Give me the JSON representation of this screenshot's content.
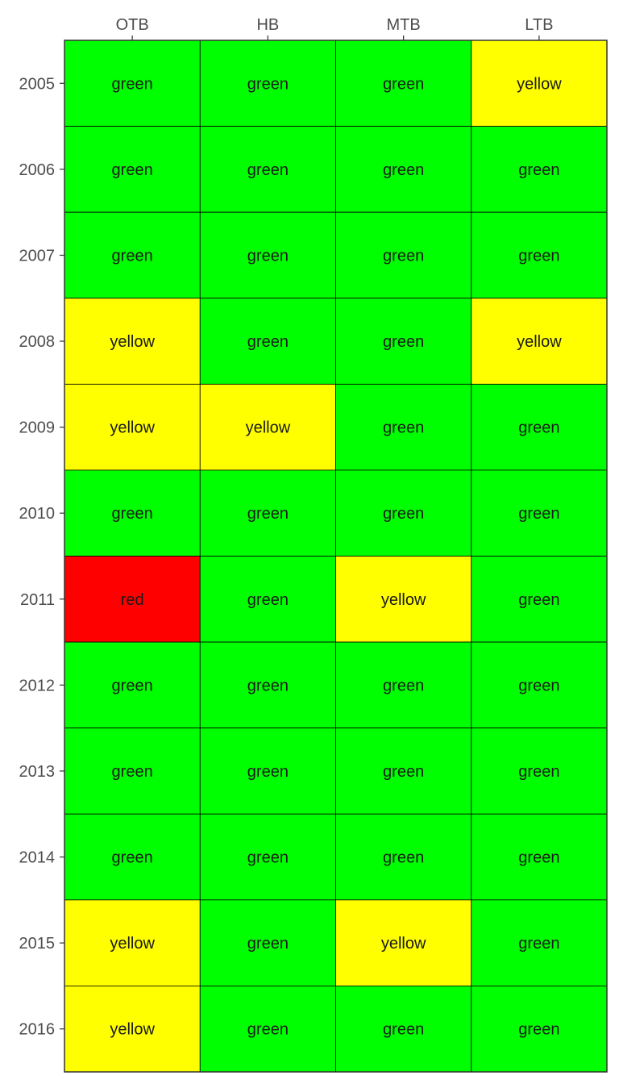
{
  "chart_data": {
    "type": "heatmap",
    "title": "",
    "xlabel": "",
    "ylabel": "",
    "columns": [
      "OTB",
      "HB",
      "MTB",
      "LTB"
    ],
    "rows": [
      "2005",
      "2006",
      "2007",
      "2008",
      "2009",
      "2010",
      "2011",
      "2012",
      "2013",
      "2014",
      "2015",
      "2016"
    ],
    "values": [
      [
        "green",
        "green",
        "green",
        "yellow"
      ],
      [
        "green",
        "green",
        "green",
        "green"
      ],
      [
        "green",
        "green",
        "green",
        "green"
      ],
      [
        "yellow",
        "green",
        "green",
        "yellow"
      ],
      [
        "yellow",
        "yellow",
        "green",
        "green"
      ],
      [
        "green",
        "green",
        "green",
        "green"
      ],
      [
        "red",
        "green",
        "yellow",
        "green"
      ],
      [
        "green",
        "green",
        "green",
        "green"
      ],
      [
        "green",
        "green",
        "green",
        "green"
      ],
      [
        "green",
        "green",
        "green",
        "green"
      ],
      [
        "yellow",
        "green",
        "yellow",
        "green"
      ],
      [
        "yellow",
        "green",
        "green",
        "green"
      ]
    ],
    "colors": {
      "green": "#00ff00",
      "yellow": "#ffff00",
      "red": "#ff0000"
    },
    "legend": "none",
    "grid": false
  }
}
